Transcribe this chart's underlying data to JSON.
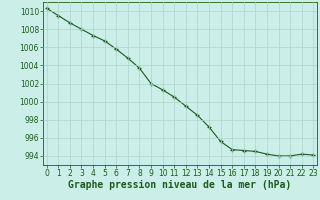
{
  "x": [
    0,
    1,
    2,
    3,
    4,
    5,
    6,
    7,
    8,
    9,
    10,
    11,
    12,
    13,
    14,
    15,
    16,
    17,
    18,
    19,
    20,
    21,
    22,
    23
  ],
  "y": [
    1010.3,
    1009.5,
    1008.7,
    1008.0,
    1007.3,
    1006.7,
    1005.8,
    1004.8,
    1003.7,
    1002.0,
    1001.3,
    1000.5,
    999.5,
    998.5,
    997.2,
    995.6,
    994.7,
    994.6,
    994.5,
    994.2,
    994.0,
    994.0,
    994.2,
    994.1
  ],
  "line_color": "#1a5c1a",
  "marker_color": "#1a5c1a",
  "bg_color": "#cceee8",
  "grid_color": "#aad4cc",
  "xlabel": "Graphe pression niveau de la mer (hPa)",
  "ylim": [
    993.0,
    1011.0
  ],
  "yticks": [
    994,
    996,
    998,
    1000,
    1002,
    1004,
    1006,
    1008,
    1010
  ],
  "xticks": [
    0,
    1,
    2,
    3,
    4,
    5,
    6,
    7,
    8,
    9,
    10,
    11,
    12,
    13,
    14,
    15,
    16,
    17,
    18,
    19,
    20,
    21,
    22,
    23
  ],
  "xlim": [
    -0.3,
    23.3
  ],
  "xlabel_fontsize": 7,
  "tick_fontsize": 5.5,
  "xlabel_bold": true
}
